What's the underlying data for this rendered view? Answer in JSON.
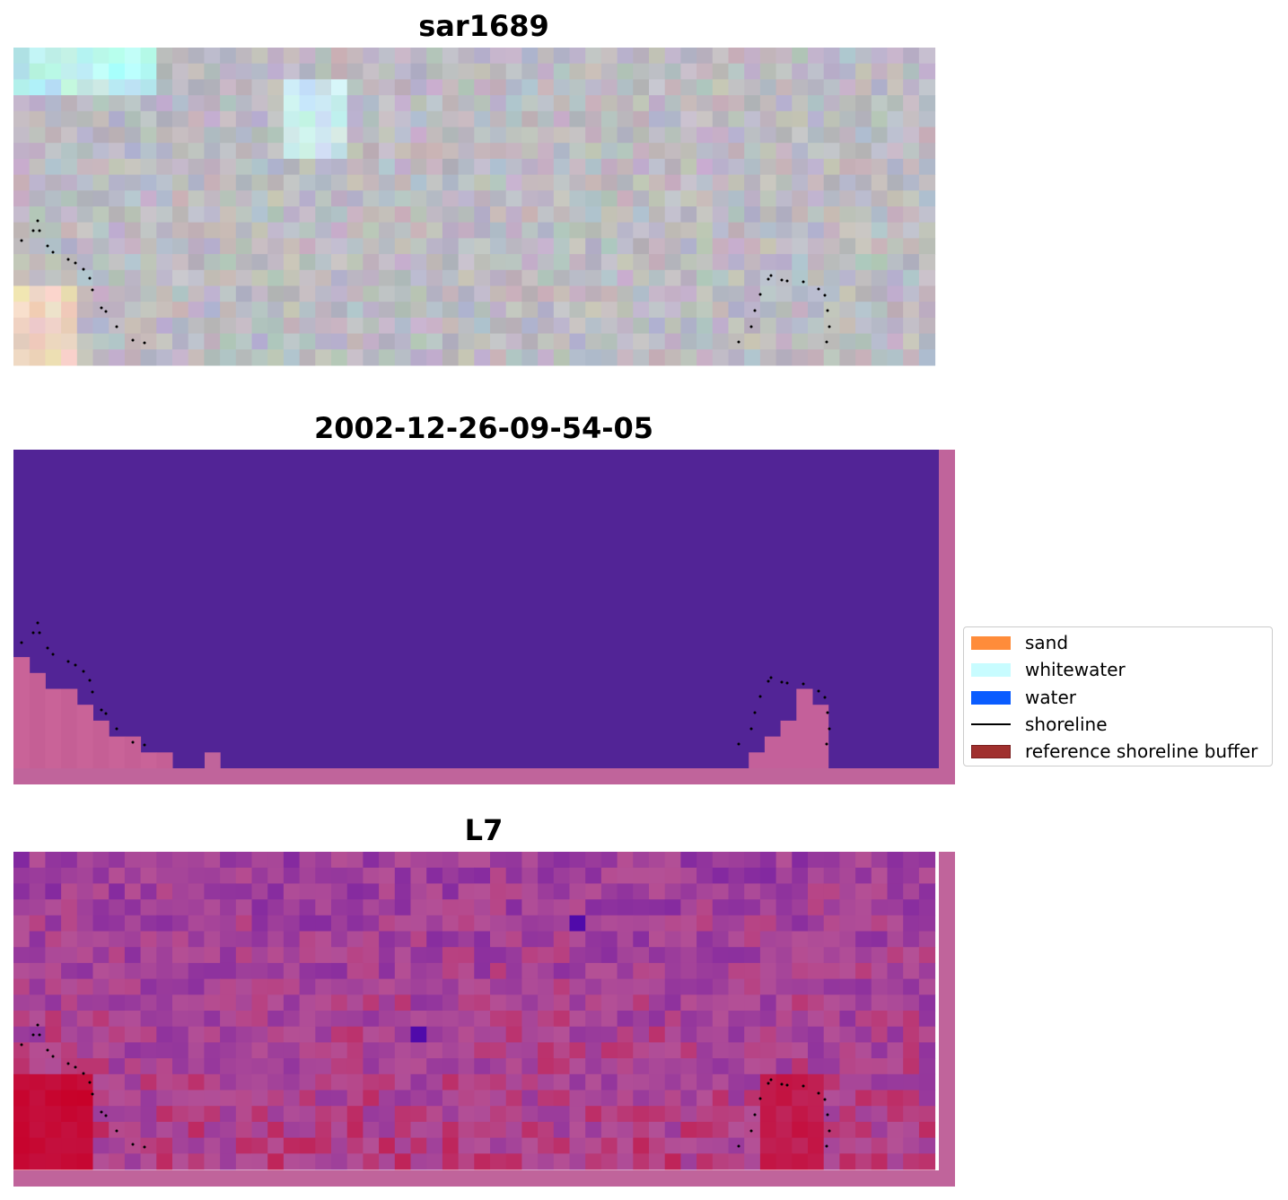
{
  "panels": [
    {
      "title": "sar1689",
      "kind": "rgb"
    },
    {
      "title": "2002-12-26-09-54-05",
      "kind": "classified"
    },
    {
      "title": "L7",
      "kind": "index"
    }
  ],
  "legend": {
    "items": [
      {
        "label": "sand",
        "color": "#ff8c3a",
        "kind": "patch"
      },
      {
        "label": "whitewater",
        "color": "#c8fcff",
        "kind": "patch"
      },
      {
        "label": "water",
        "color": "#0a5cff",
        "kind": "patch"
      },
      {
        "label": "shoreline",
        "color": "#000000",
        "kind": "line"
      },
      {
        "label": "reference shoreline buffer",
        "color": "#a0302e",
        "kind": "patch"
      }
    ]
  },
  "colors": {
    "classified_water": "#522496",
    "buffer_overlay": "#c0649b"
  }
}
